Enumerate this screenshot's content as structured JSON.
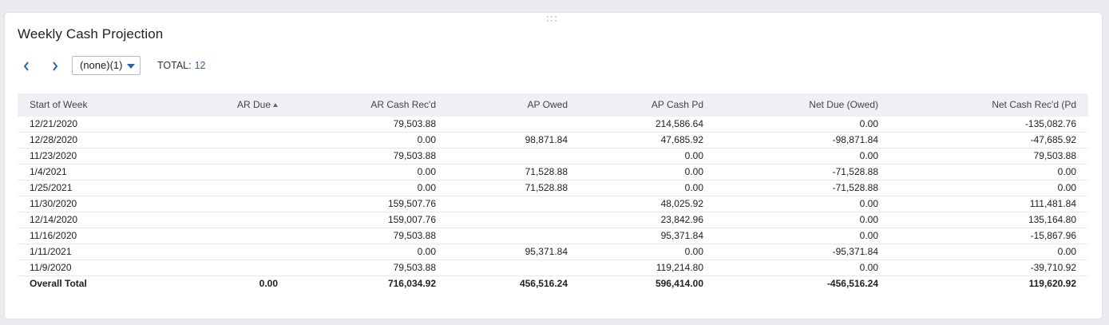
{
  "portlet": {
    "title": "Weekly Cash Projection"
  },
  "toolbar": {
    "prev_icon": "chevron-left-icon",
    "next_icon": "chevron-right-icon",
    "filter_value": "(none)(1)",
    "total_label": "TOTAL:",
    "total_count": "12"
  },
  "colors": {
    "accent": "#2a64a8",
    "header_bg": "#eef0f3",
    "page_bg": "#e9ebef"
  },
  "table": {
    "columns": [
      {
        "label": "Start of Week"
      },
      {
        "label": "AR Due",
        "sort": "ascending"
      },
      {
        "label": "AR Cash Rec'd"
      },
      {
        "label": "AP Owed"
      },
      {
        "label": "AP Cash Pd"
      },
      {
        "label": "Net Due (Owed)"
      },
      {
        "label": "Net Cash Rec'd (Pd"
      }
    ],
    "rows": [
      [
        "12/21/2020",
        "",
        "79,503.88",
        "",
        "214,586.64",
        "0.00",
        "-135,082.76"
      ],
      [
        "12/28/2020",
        "",
        "0.00",
        "98,871.84",
        "47,685.92",
        "-98,871.84",
        "-47,685.92"
      ],
      [
        "11/23/2020",
        "",
        "79,503.88",
        "",
        "0.00",
        "0.00",
        "79,503.88"
      ],
      [
        "1/4/2021",
        "",
        "0.00",
        "71,528.88",
        "0.00",
        "-71,528.88",
        "0.00"
      ],
      [
        "1/25/2021",
        "",
        "0.00",
        "71,528.88",
        "0.00",
        "-71,528.88",
        "0.00"
      ],
      [
        "11/30/2020",
        "",
        "159,507.76",
        "",
        "48,025.92",
        "0.00",
        "111,481.84"
      ],
      [
        "12/14/2020",
        "",
        "159,007.76",
        "",
        "23,842.96",
        "0.00",
        "135,164.80"
      ],
      [
        "11/16/2020",
        "",
        "79,503.88",
        "",
        "95,371.84",
        "0.00",
        "-15,867.96"
      ],
      [
        "1/11/2021",
        "",
        "0.00",
        "95,371.84",
        "0.00",
        "-95,371.84",
        "0.00"
      ],
      [
        "11/9/2020",
        "",
        "79,503.88",
        "",
        "119,214.80",
        "0.00",
        "-39,710.92"
      ]
    ],
    "total_row": [
      "Overall Total",
      "0.00",
      "716,034.92",
      "456,516.24",
      "596,414.00",
      "-456,516.24",
      "119,620.92"
    ]
  }
}
